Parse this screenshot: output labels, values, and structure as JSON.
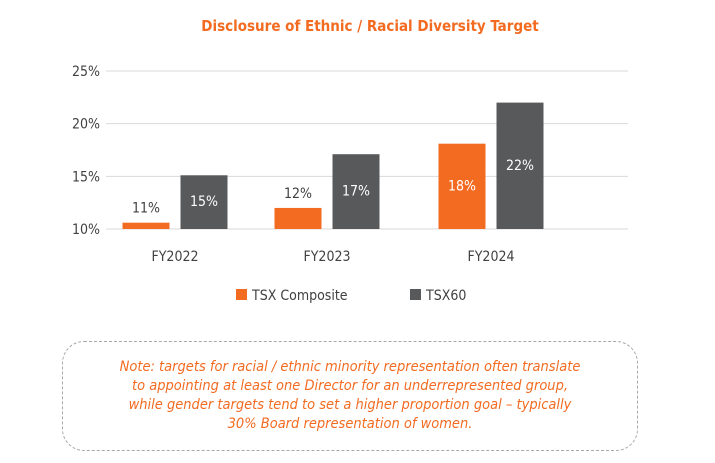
{
  "chart_data": {
    "type": "bar",
    "title": "Disclosure of Ethnic / Racial Diversity Target",
    "categories": [
      "FY2022",
      "FY2023",
      "FY2024"
    ],
    "series": [
      {
        "name": "TSX Composite",
        "color": "#F26B21",
        "values": [
          10.6,
          12.0,
          18.1
        ],
        "labels": [
          "11%",
          "12%",
          "18%"
        ]
      },
      {
        "name": "TSX60",
        "color": "#58595B",
        "values": [
          15.1,
          17.1,
          22.0
        ],
        "labels": [
          "15%",
          "17%",
          "22%"
        ]
      }
    ],
    "yticks": [
      "10%",
      "15%",
      "20%",
      "25%"
    ],
    "ylim": [
      10,
      25
    ],
    "grid": true,
    "legend": "bottom",
    "xlabel": "",
    "ylabel": ""
  },
  "note": {
    "lines": [
      "Note: targets for racial / ethnic minority representation often translate",
      "to appointing at least one Director for an underrepresented group,",
      "while gender targets tend to set a higher proportion goal – typically",
      "30% Board representation of women."
    ]
  }
}
